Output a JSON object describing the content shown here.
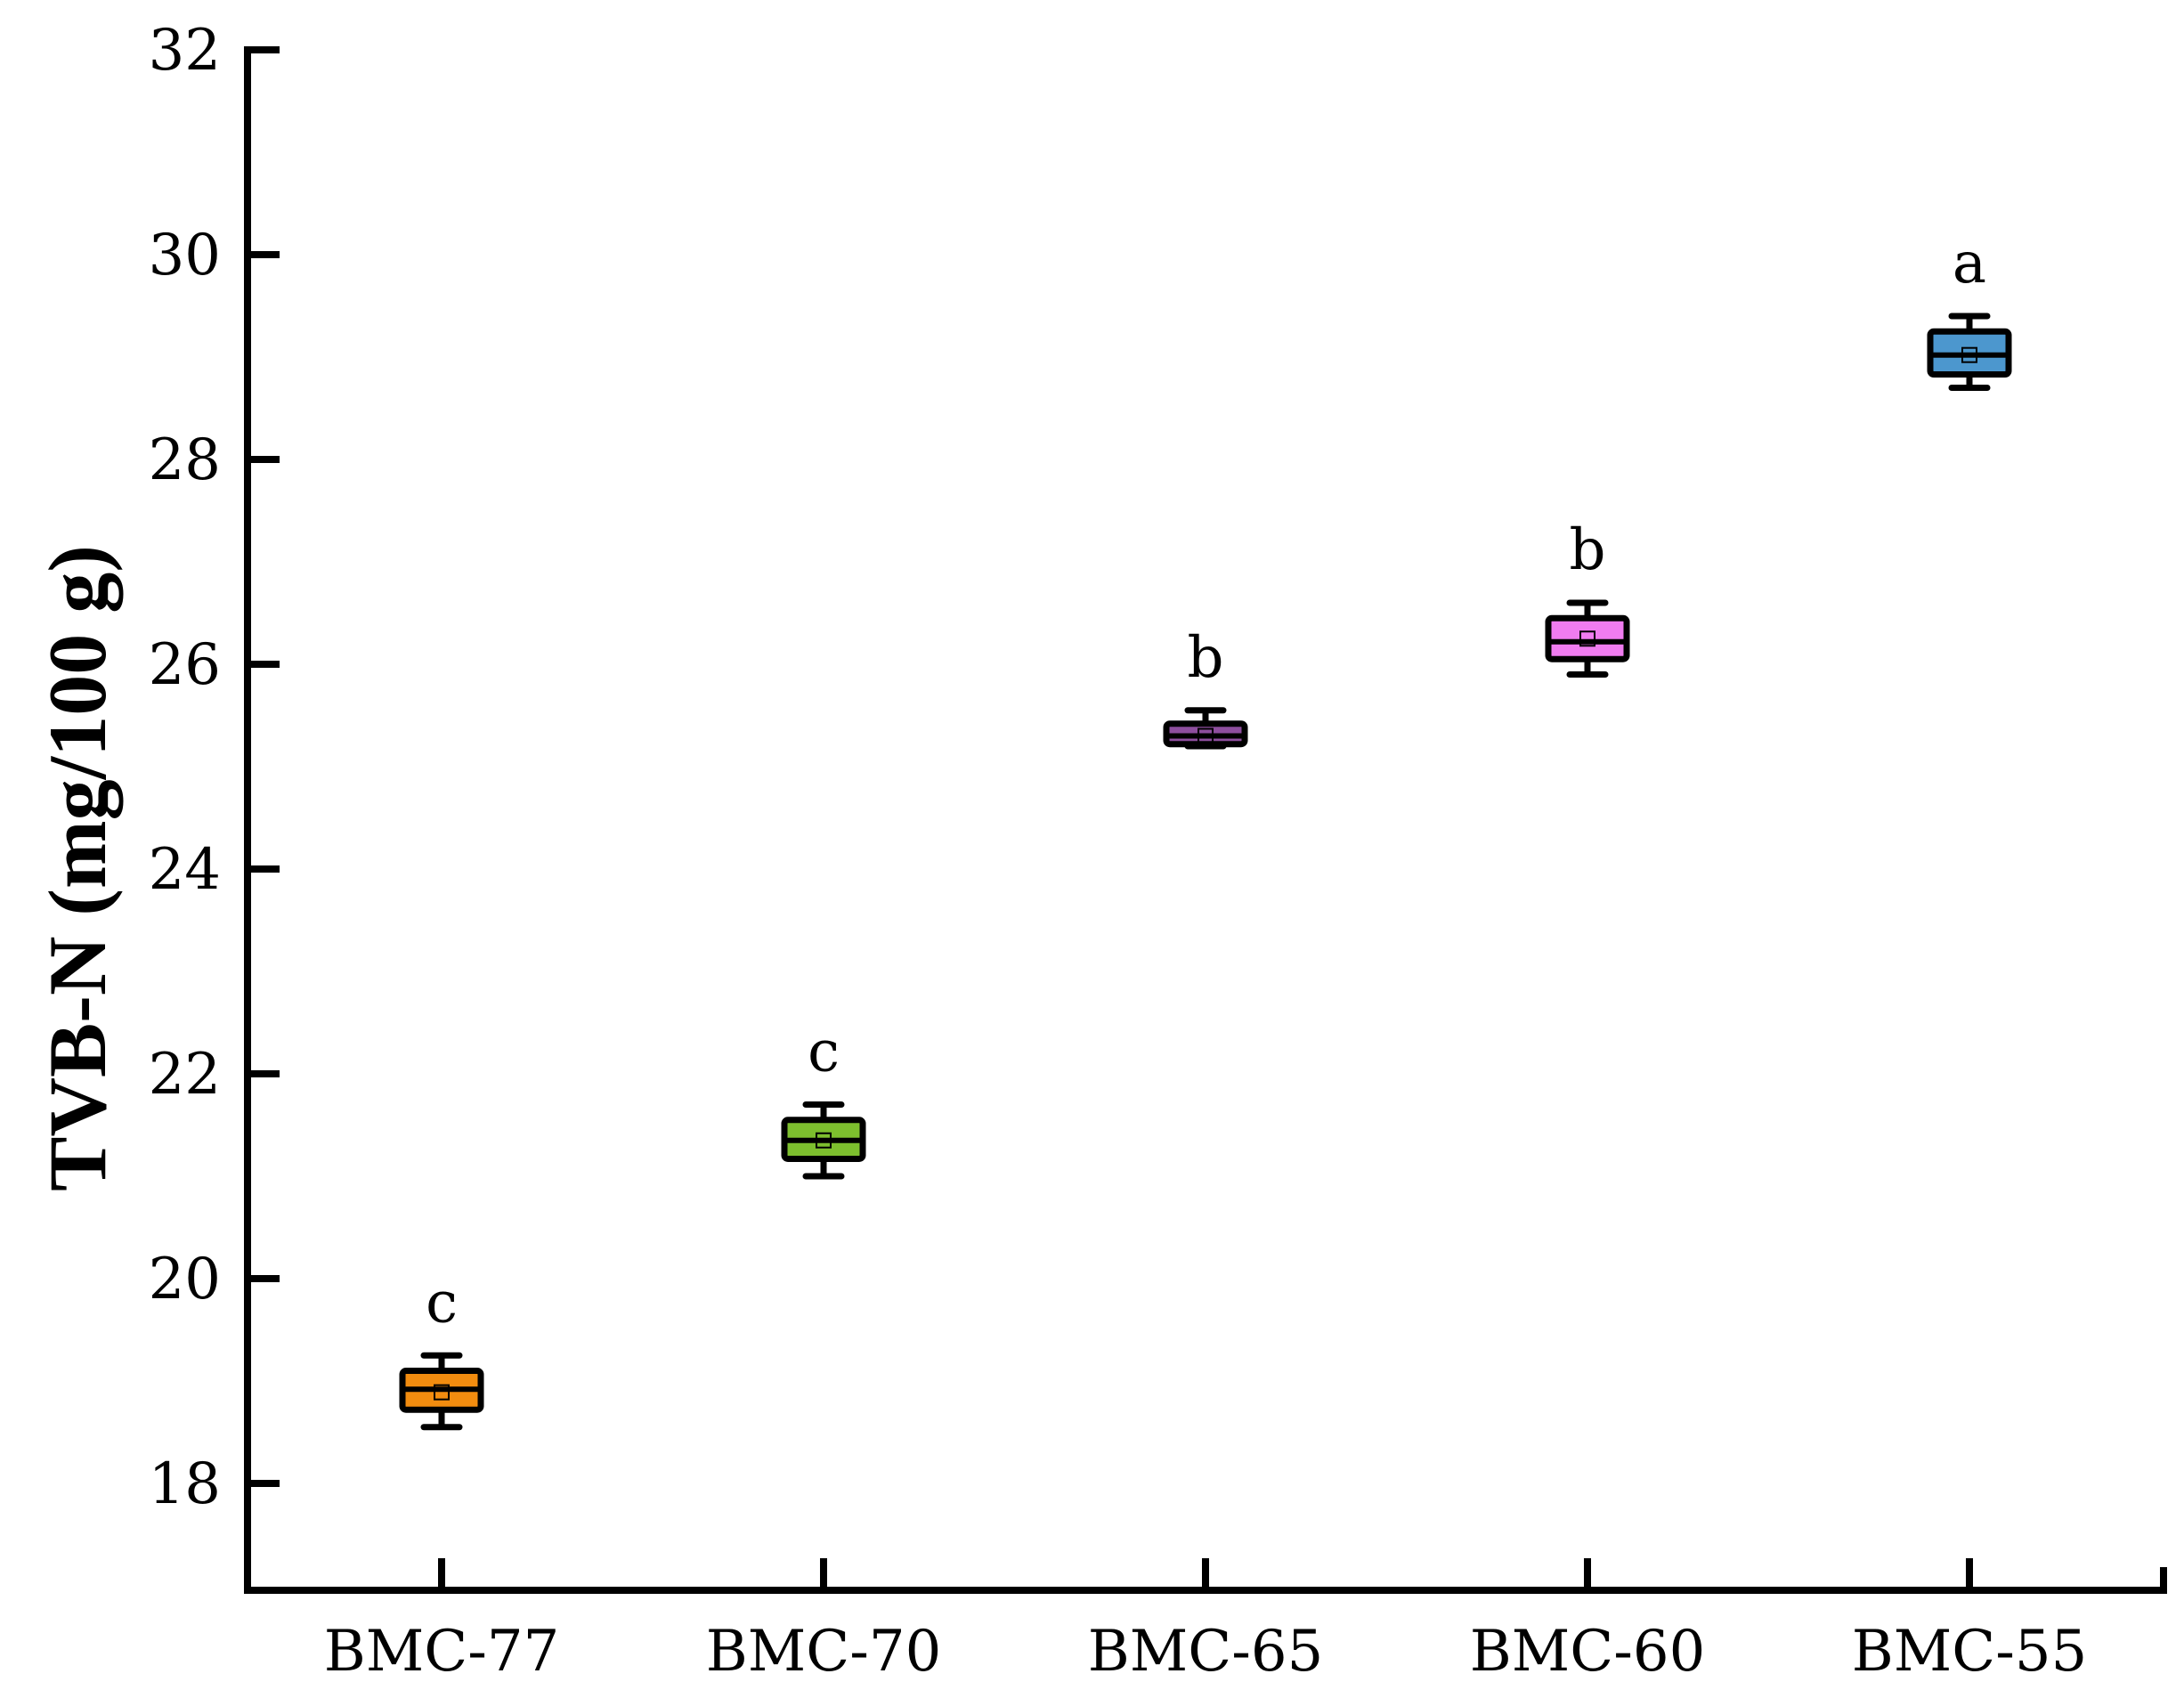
{
  "chart_data": {
    "type": "box",
    "title": "",
    "xlabel": "",
    "ylabel": "TVB-N (mg/100 g)",
    "ylim": [
      17,
      32
    ],
    "yticks": [
      18,
      20,
      22,
      24,
      26,
      28,
      30,
      32
    ],
    "grid": false,
    "legend": "none",
    "categories": [
      "BMC-77",
      "BMC-70",
      "BMC-65",
      "BMC-60",
      "BMC-55"
    ],
    "series": [
      {
        "boxes": [
          {
            "category": "BMC-77",
            "min": 18.55,
            "q1": 18.72,
            "median": 18.92,
            "mean": 18.89,
            "q3": 19.1,
            "max": 19.25,
            "letter": "c",
            "color": "#F28C0F"
          },
          {
            "category": "BMC-70",
            "min": 21.0,
            "q1": 21.17,
            "median": 21.35,
            "mean": 21.35,
            "q3": 21.55,
            "max": 21.7,
            "letter": "c",
            "color": "#7DBF2E"
          },
          {
            "category": "BMC-65",
            "min": 25.2,
            "q1": 25.22,
            "median": 25.3,
            "mean": 25.3,
            "q3": 25.42,
            "max": 25.55,
            "letter": "b",
            "color": "#8E4E9E"
          },
          {
            "category": "BMC-60",
            "min": 25.9,
            "q1": 26.05,
            "median": 26.22,
            "mean": 26.25,
            "q3": 26.45,
            "max": 26.6,
            "letter": "b",
            "color": "#F07CF0"
          },
          {
            "category": "BMC-55",
            "min": 28.7,
            "q1": 28.83,
            "median": 29.02,
            "mean": 29.02,
            "q3": 29.25,
            "max": 29.4,
            "letter": "a",
            "color": "#4C97CE"
          }
        ]
      }
    ]
  }
}
